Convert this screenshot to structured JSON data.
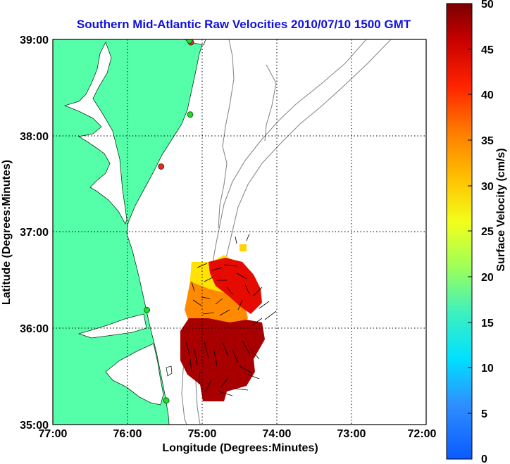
{
  "title": "Southern Mid-Atlantic Raw Velocities 2010/07/10 1500 GMT",
  "x_axis": {
    "label": "Longitude (Degrees:Minutes)",
    "ticks": [
      "77:00",
      "76:00",
      "75:00",
      "74:00",
      "73:00",
      "72:00"
    ]
  },
  "y_axis": {
    "label": "Latitude (Degrees:Minutes)",
    "ticks": [
      "39:00",
      "38:00",
      "37:00",
      "36:00",
      "35:00"
    ]
  },
  "colorbar": {
    "label": "Surface Velocity (cm/s)",
    "ticks": [
      "50",
      "45",
      "40",
      "35",
      "30",
      "25",
      "20",
      "15",
      "10",
      "5",
      "0"
    ],
    "min": 0,
    "max": 50
  },
  "colors": {
    "land": "#55ffaa",
    "water": "#ffffff",
    "bathymetry": "#8a8a8a",
    "title": "#1010e0",
    "station_green": "#22dd22",
    "station_red": "#ee2222"
  },
  "map_extent": {
    "lon_min": -77.0,
    "lon_max": -72.0,
    "lat_min": 35.0,
    "lat_max": 39.0
  },
  "stations": [
    {
      "lon": -75.15,
      "lat": 38.97,
      "status": "red"
    },
    {
      "lon": -75.17,
      "lat": 38.99,
      "status": "green"
    },
    {
      "lon": -75.16,
      "lat": 38.22,
      "status": "green"
    },
    {
      "lon": -75.55,
      "lat": 37.68,
      "status": "red"
    },
    {
      "lon": -75.74,
      "lat": 36.19,
      "status": "green"
    },
    {
      "lon": -75.48,
      "lat": 35.25,
      "status": "green"
    }
  ]
}
